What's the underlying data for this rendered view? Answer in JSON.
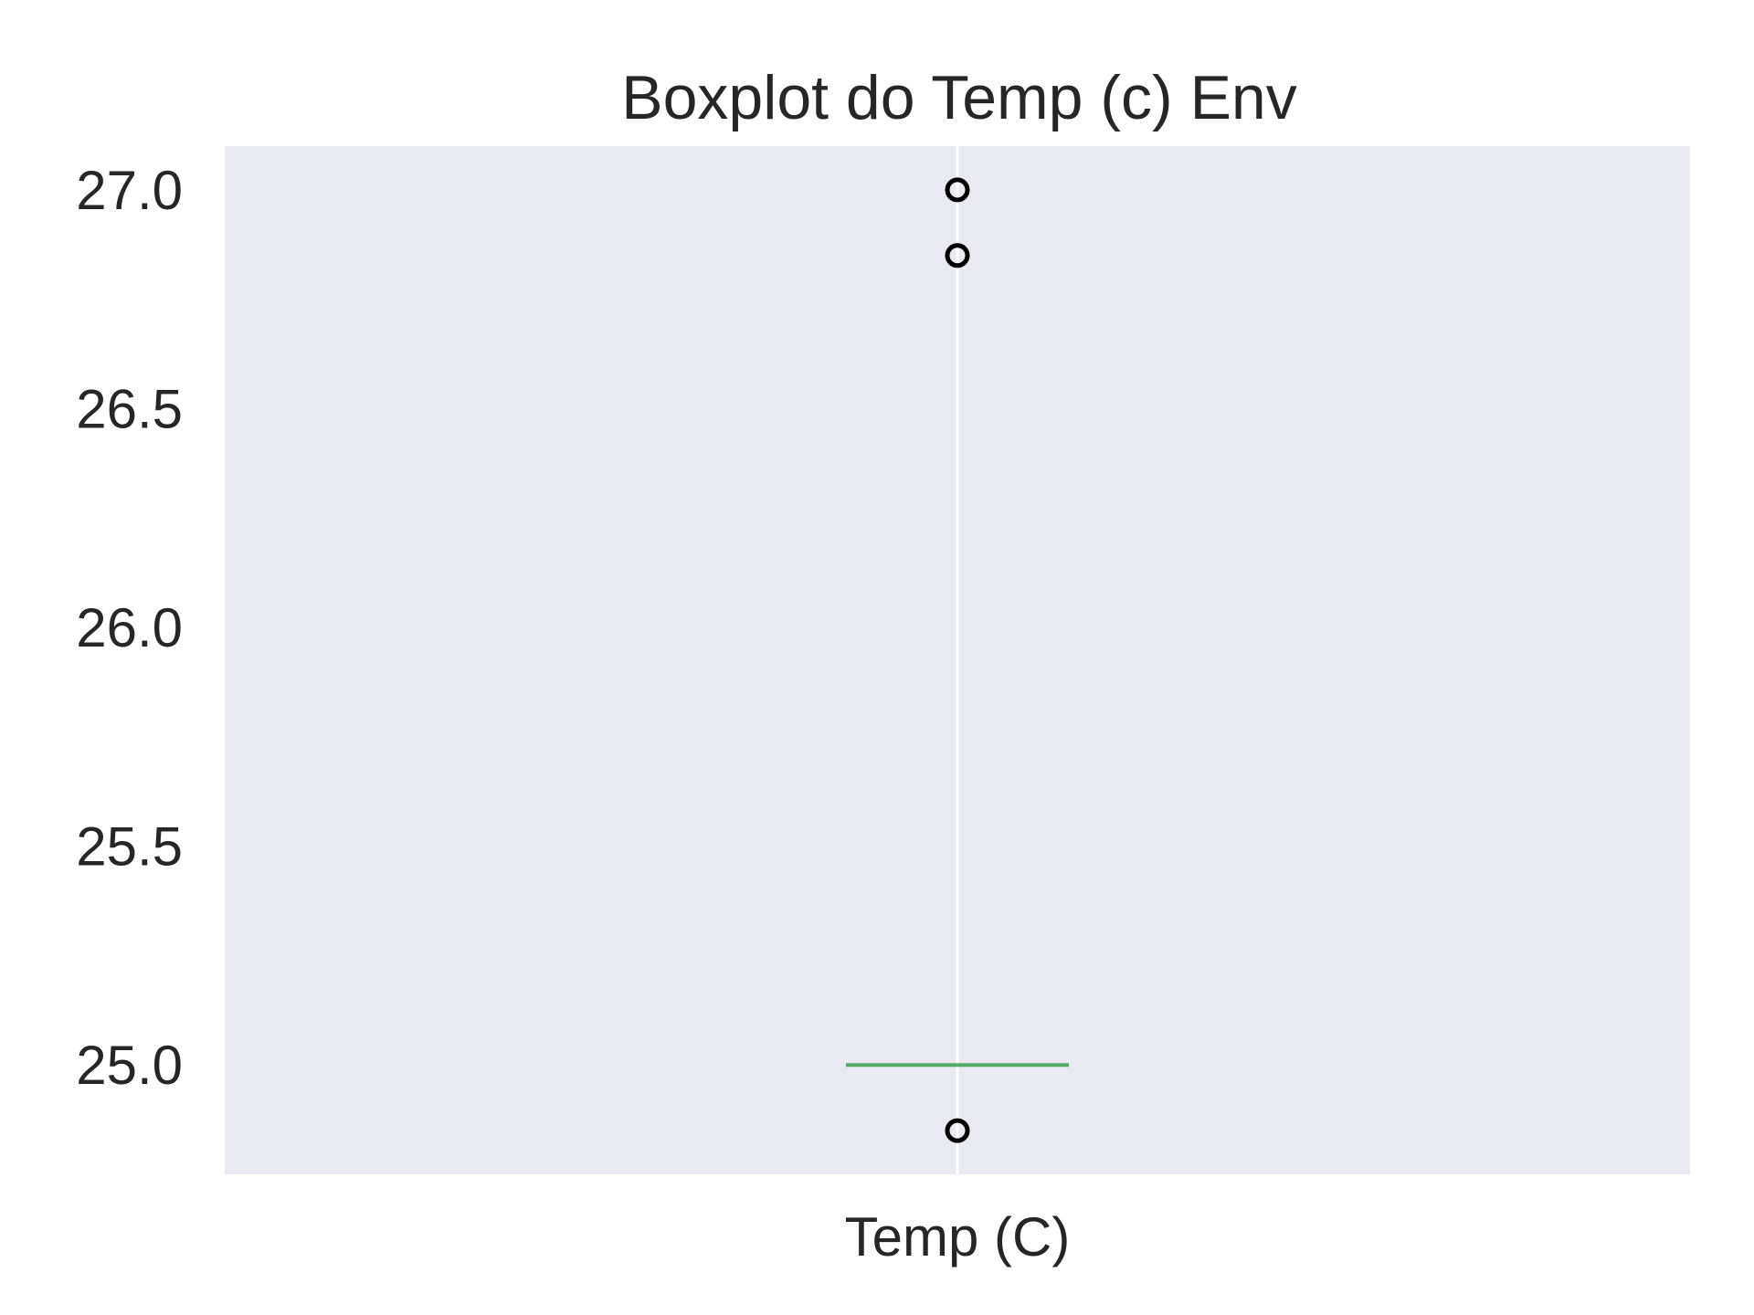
{
  "chart_data": {
    "type": "boxplot",
    "title": "Boxplot do Temp (c) Env",
    "xlabel": "",
    "ylabel": "",
    "categories": [
      "Temp (C)"
    ],
    "boxes": [
      {
        "category": "Temp (C)",
        "q1": 25.0,
        "median": 25.0,
        "q3": 25.0,
        "whisker_low": 25.0,
        "whisker_high": 25.0,
        "outliers": [
          27.0,
          26.85,
          24.85
        ]
      }
    ],
    "ylim": [
      24.75,
      27.1
    ],
    "yticks": [
      25.0,
      25.5,
      26.0,
      26.5,
      27.0
    ],
    "ytick_labels": [
      "25.0",
      "25.5",
      "26.0",
      "26.5",
      "27.0"
    ],
    "grid": true,
    "colors": {
      "background": "#EAEAF2",
      "grid": "#FFFFFF",
      "median": "#55A868",
      "outlier_edge": "#000000",
      "text": "#262626"
    }
  }
}
